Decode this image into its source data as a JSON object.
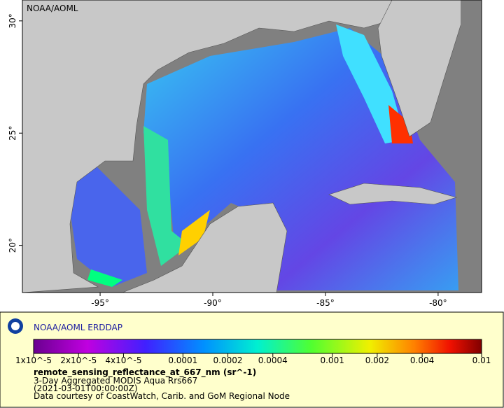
{
  "map": {
    "corner_label": "NOAA/AOML",
    "xlim": [
      -98.45,
      -78.07
    ],
    "ylim": [
      17.9,
      30.93
    ],
    "xticks": [
      {
        "value": -95,
        "label": "-95°"
      },
      {
        "value": -90,
        "label": "-90°"
      },
      {
        "value": -85,
        "label": "-85°"
      },
      {
        "value": -80,
        "label": "-80°"
      }
    ],
    "yticks": [
      {
        "value": 30,
        "label": "30°"
      },
      {
        "value": 25,
        "label": "25°"
      },
      {
        "value": 20,
        "label": "20°"
      }
    ]
  },
  "legend": {
    "title": "NOAA/AOML ERDDAP",
    "colorbar": {
      "log": true,
      "lim": [
        1e-05,
        0.01
      ],
      "ticks": [
        {
          "value": 1e-05,
          "label": "1x10^-5"
        },
        {
          "value": 2e-05,
          "label": "2x10^-5"
        },
        {
          "value": 4e-05,
          "label": "4x10^-5"
        },
        0.0001,
        0.0002,
        0.0004,
        0.001,
        0.002,
        0.004,
        0.01
      ]
    },
    "variable": "remote_sensing_reflectance_at_667_nm (sr^-1)",
    "lines": [
      "3-Day Aggregated MODIS Aqua Rrs667",
      "(2021-03-01T00:00:00Z)",
      "Data courtesy of CoastWatch, Carib. and GoM Regional Node"
    ]
  }
}
